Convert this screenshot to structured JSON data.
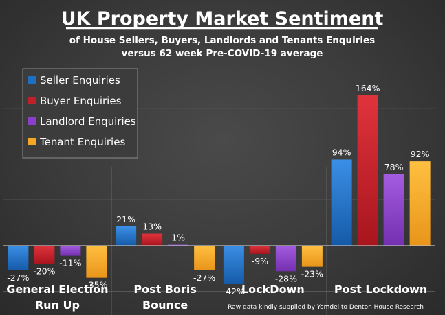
{
  "chart_data": {
    "type": "bar",
    "title": "UK Property Market Sentiment",
    "subtitle_lines": [
      "of House Sellers, Buyers, Landlords and Tenants Enquiries",
      "versus 62 week Pre-COVID-19 average"
    ],
    "categories": [
      "General Election|Run Up",
      "Post Boris|Bounce",
      "LockDown",
      "Post Lockdown"
    ],
    "series": [
      {
        "name": "Seller Enquiries",
        "color": "#1f6fc4",
        "values": [
          -27,
          21,
          -42,
          94
        ],
        "labels": [
          "-27%",
          "21%",
          "-42%",
          "94%"
        ]
      },
      {
        "name": "Buyer Enquiries",
        "color": "#c0202a",
        "values": [
          -20,
          13,
          -9,
          164
        ],
        "labels": [
          "-20%",
          "13%",
          "-9%",
          "164%"
        ]
      },
      {
        "name": "Landlord Enquiries",
        "color": "#8a3fc9",
        "values": [
          -11,
          1,
          -28,
          78
        ],
        "labels": [
          "-11%",
          "1%",
          "-28%",
          "78%"
        ]
      },
      {
        "name": "Tenant Enquiries",
        "color": "#f5a623",
        "values": [
          -35,
          -27,
          -23,
          92
        ],
        "labels": [
          "-35%",
          "-27%",
          "-23%",
          "92%"
        ]
      }
    ],
    "ylim": [
      -45,
      170
    ],
    "ylabel": "",
    "xlabel": "",
    "legend_position": "top-left",
    "source_note": "Raw data kindly supplied by Yomdel to Denton House Research"
  }
}
